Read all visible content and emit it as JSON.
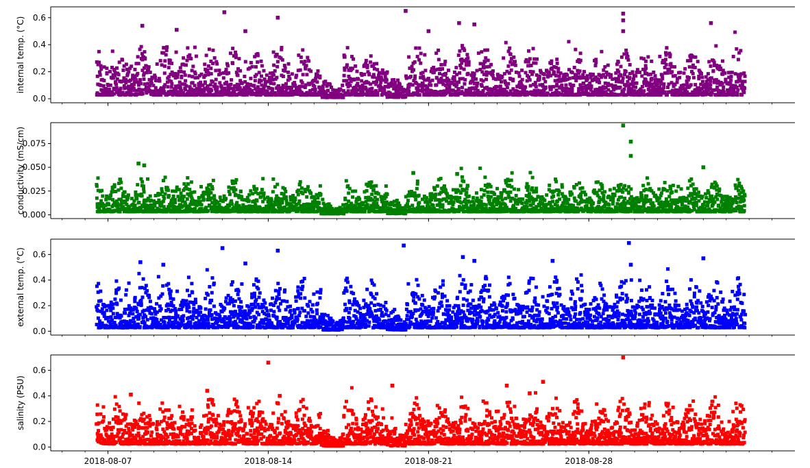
{
  "chart_data": [
    {
      "type": "scatter",
      "ylabel": "internal temp. (°C)",
      "color": "#800080",
      "ylim": [
        -0.03,
        0.68
      ],
      "yticks": [
        0.0,
        0.2,
        0.4,
        0.6
      ],
      "ytick_labels": [
        "0.0",
        "0.2",
        "0.4",
        "0.6"
      ],
      "xlim": [
        "2018-08-04T12:00",
        "2018-09-06T00:00"
      ],
      "x_range": [
        "2018-08-06T12:00",
        "2018-09-03T20:00"
      ],
      "baseline": 0.07,
      "spread": 0.12,
      "outliers": [
        [
          "2018-08-12T02:00",
          0.64
        ],
        [
          "2018-08-14T10:00",
          0.6
        ],
        [
          "2018-08-20T00:00",
          0.65
        ],
        [
          "2018-08-21T00:00",
          0.5
        ],
        [
          "2018-08-22T08:00",
          0.56
        ],
        [
          "2018-08-23T00:00",
          0.55
        ],
        [
          "2018-08-29T12:00",
          0.63
        ],
        [
          "2018-08-29T12:00",
          0.58
        ],
        [
          "2018-08-29T12:00",
          0.5
        ],
        [
          "2018-09-02T08:00",
          0.56
        ],
        [
          "2018-08-08T12:00",
          0.54
        ],
        [
          "2018-08-10T00:00",
          0.51
        ],
        [
          "2018-08-13T00:00",
          0.5
        ],
        [
          "2018-08-17T08:00",
          0.31
        ]
      ]
    },
    {
      "type": "scatter",
      "ylabel": "conductivity (mS/cm)",
      "color": "#008000",
      "ylim": [
        -0.004,
        0.097
      ],
      "yticks": [
        0.0,
        0.025,
        0.05,
        0.075
      ],
      "ytick_labels": [
        "0.000",
        "0.025",
        "0.050",
        "0.075"
      ],
      "xlim": [
        "2018-08-04T12:00",
        "2018-09-06T00:00"
      ],
      "x_range": [
        "2018-08-06T12:00",
        "2018-09-03T20:00"
      ],
      "baseline": 0.008,
      "spread": 0.012,
      "outliers": [
        [
          "2018-08-29T12:00",
          0.094
        ],
        [
          "2018-08-29T20:00",
          0.077
        ],
        [
          "2018-08-08T08:00",
          0.054
        ],
        [
          "2018-08-08T14:00",
          0.052
        ],
        [
          "2018-09-02T00:00",
          0.05
        ],
        [
          "2018-08-29T20:00",
          0.062
        ],
        [
          "2018-08-20T08:00",
          0.044
        ],
        [
          "2018-08-22T06:00",
          0.043
        ]
      ]
    },
    {
      "type": "scatter",
      "ylabel": "external temp. (°C)",
      "color": "#0000ff",
      "ylim": [
        -0.03,
        0.72
      ],
      "yticks": [
        0.0,
        0.2,
        0.4,
        0.6
      ],
      "ytick_labels": [
        "0.0",
        "0.2",
        "0.4",
        "0.6"
      ],
      "xlim": [
        "2018-08-04T12:00",
        "2018-09-06T00:00"
      ],
      "x_range": [
        "2018-08-06T12:00",
        "2018-09-03T20:00"
      ],
      "baseline": 0.07,
      "spread": 0.13,
      "outliers": [
        [
          "2018-08-12T00:00",
          0.65
        ],
        [
          "2018-08-14T10:00",
          0.63
        ],
        [
          "2018-08-19T22:00",
          0.67
        ],
        [
          "2018-08-22T12:00",
          0.58
        ],
        [
          "2018-08-23T00:00",
          0.55
        ],
        [
          "2018-08-29T18:00",
          0.69
        ],
        [
          "2018-08-29T20:00",
          0.52
        ],
        [
          "2018-09-02T00:00",
          0.57
        ],
        [
          "2018-08-08T10:00",
          0.54
        ],
        [
          "2018-08-09T10:00",
          0.52
        ],
        [
          "2018-08-13T00:00",
          0.53
        ],
        [
          "2018-08-26T10:00",
          0.55
        ]
      ]
    },
    {
      "type": "scatter",
      "ylabel": "salinity (PSU)",
      "color": "#ff0000",
      "ylim": [
        -0.03,
        0.72
      ],
      "yticks": [
        0.0,
        0.2,
        0.4,
        0.6
      ],
      "ytick_labels": [
        "0.0",
        "0.2",
        "0.4",
        "0.6"
      ],
      "xlim": [
        "2018-08-04T12:00",
        "2018-09-06T00:00"
      ],
      "x_range": [
        "2018-08-06T12:00",
        "2018-09-03T20:00"
      ],
      "baseline": 0.06,
      "spread": 0.12,
      "outliers": [
        [
          "2018-08-14T00:00",
          0.66
        ],
        [
          "2018-08-29T12:00",
          0.7
        ],
        [
          "2018-08-26T00:00",
          0.51
        ],
        [
          "2018-08-19T10:00",
          0.48
        ],
        [
          "2018-08-24T10:00",
          0.48
        ],
        [
          "2018-08-14T12:00",
          0.4
        ],
        [
          "2018-08-08T00:00",
          0.41
        ],
        [
          "2018-08-11T08:00",
          0.44
        ],
        [
          "2018-08-25T10:00",
          0.42
        ]
      ]
    }
  ],
  "xticks": [
    "2018-08-07",
    "2018-08-14",
    "2018-08-21",
    "2018-08-28"
  ]
}
